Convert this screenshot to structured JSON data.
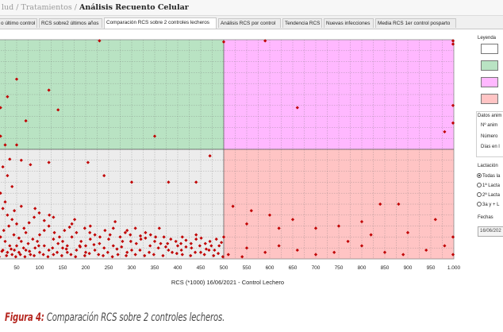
{
  "titlebar": {
    "crumb_prefix": "lud / Tratamientos",
    "separator": "/",
    "current": "Análisis Recuento Celular"
  },
  "tabs": [
    {
      "label": "o último control",
      "active": false
    },
    {
      "label": "RCS sobre2 últimos años",
      "active": false
    },
    {
      "label": "Comparación RCS sobre 2 controles lecheros",
      "active": true
    },
    {
      "label": "Análisis RCS por control",
      "active": false
    },
    {
      "label": "Tendencia RCS",
      "active": false
    },
    {
      "label": "Nuevas infecciones",
      "active": false
    },
    {
      "label": "Media RCS 1er control posparto",
      "active": false
    }
  ],
  "sidebar": {
    "legend_title": "Leyenda",
    "legend_colors": [
      "#ffffff",
      "#b9e3c3",
      "#ffb8ff",
      "#ffc4c4"
    ],
    "animal_group_title": "Datos anim",
    "animal_fields": [
      "Nº anim",
      "Número",
      "Días en l"
    ],
    "lactation_title": "Lactación",
    "lactation_options": [
      {
        "label": "Todas la",
        "selected": true
      },
      {
        "label": "1ª Lacta",
        "selected": false
      },
      {
        "label": "2ª Lacta",
        "selected": false
      },
      {
        "label": "3a y + L",
        "selected": false
      }
    ],
    "dates_title": "Fechas",
    "date_value": "16/06/202"
  },
  "chart_data": {
    "type": "scatter",
    "xlabel": "RCS (*1000) 16/06/2021 - Control Lechero",
    "ylabel": "",
    "x_ticks": [
      "50",
      "100",
      "150",
      "200",
      "250",
      "300",
      "350",
      "400",
      "450",
      "500",
      "550",
      "600",
      "650",
      "700",
      "750",
      "800",
      "850",
      "900",
      "950",
      "1.000"
    ],
    "x_tick_values": [
      50,
      100,
      150,
      200,
      250,
      300,
      350,
      400,
      450,
      500,
      550,
      600,
      650,
      700,
      750,
      800,
      850,
      900,
      950,
      1000
    ],
    "xlim": [
      0,
      1000
    ],
    "ylim": [
      0,
      1000
    ],
    "threshold_x": 500,
    "threshold_y": 500,
    "grid": true,
    "quadrants": [
      {
        "region": "top-left",
        "color": "#b9e3c3"
      },
      {
        "region": "top-right",
        "color": "#ffb8ff"
      },
      {
        "region": "bottom-left",
        "color": "#ececec"
      },
      {
        "region": "bottom-right",
        "color": "#ffc4c4"
      }
    ],
    "marker_color": "#c00000",
    "points": [
      [
        0,
        990
      ],
      [
        230,
        995
      ],
      [
        500,
        990
      ],
      [
        590,
        995
      ],
      [
        1000,
        995
      ],
      [
        10,
        800
      ],
      [
        50,
        820
      ],
      [
        120,
        770
      ],
      [
        5,
        700
      ],
      [
        15,
        690
      ],
      [
        30,
        740
      ],
      [
        70,
        630
      ],
      [
        140,
        680
      ],
      [
        350,
        560
      ],
      [
        660,
        690
      ],
      [
        1000,
        980
      ],
      [
        1000,
        700
      ],
      [
        1000,
        620
      ],
      [
        980,
        580
      ],
      [
        5,
        600
      ],
      [
        15,
        560
      ],
      [
        50,
        520
      ],
      [
        25,
        520
      ],
      [
        35,
        455
      ],
      [
        60,
        450
      ],
      [
        80,
        430
      ],
      [
        120,
        440
      ],
      [
        205,
        440
      ],
      [
        240,
        380
      ],
      [
        300,
        350
      ],
      [
        380,
        350
      ],
      [
        440,
        350
      ],
      [
        470,
        470
      ],
      [
        20,
        420
      ],
      [
        30,
        380
      ],
      [
        40,
        330
      ],
      [
        15,
        300
      ],
      [
        5,
        280
      ],
      [
        25,
        260
      ],
      [
        60,
        240
      ],
      [
        45,
        220
      ],
      [
        90,
        230
      ],
      [
        130,
        190
      ],
      [
        170,
        160
      ],
      [
        210,
        150
      ],
      [
        260,
        140
      ],
      [
        290,
        130
      ],
      [
        330,
        120
      ],
      [
        360,
        140
      ],
      [
        410,
        100
      ],
      [
        440,
        90
      ],
      [
        470,
        80
      ],
      [
        490,
        60
      ],
      [
        480,
        40
      ],
      [
        450,
        30
      ],
      [
        410,
        20
      ],
      [
        380,
        40
      ],
      [
        340,
        60
      ],
      [
        300,
        40
      ],
      [
        270,
        20
      ],
      [
        240,
        50
      ],
      [
        200,
        30
      ],
      [
        160,
        60
      ],
      [
        120,
        40
      ],
      [
        95,
        80
      ],
      [
        70,
        120
      ],
      [
        50,
        160
      ],
      [
        40,
        180
      ],
      [
        30,
        200
      ],
      [
        20,
        230
      ],
      [
        10,
        150
      ],
      [
        5,
        120
      ],
      [
        15,
        100
      ],
      [
        25,
        80
      ],
      [
        35,
        60
      ],
      [
        45,
        40
      ],
      [
        55,
        30
      ],
      [
        65,
        50
      ],
      [
        75,
        70
      ],
      [
        85,
        90
      ],
      [
        100,
        110
      ],
      [
        110,
        130
      ],
      [
        120,
        150
      ],
      [
        130,
        90
      ],
      [
        140,
        70
      ],
      [
        150,
        50
      ],
      [
        160,
        30
      ],
      [
        170,
        100
      ],
      [
        180,
        120
      ],
      [
        190,
        80
      ],
      [
        200,
        60
      ],
      [
        210,
        90
      ],
      [
        220,
        110
      ],
      [
        230,
        70
      ],
      [
        250,
        90
      ],
      [
        260,
        60
      ],
      [
        280,
        80
      ],
      [
        310,
        70
      ],
      [
        320,
        90
      ],
      [
        350,
        80
      ],
      [
        370,
        100
      ],
      [
        400,
        60
      ],
      [
        430,
        50
      ],
      [
        460,
        70
      ],
      [
        10,
        50
      ],
      [
        20,
        40
      ],
      [
        30,
        30
      ],
      [
        40,
        20
      ],
      [
        50,
        60
      ],
      [
        60,
        80
      ],
      [
        70,
        40
      ],
      [
        80,
        20
      ],
      [
        90,
        50
      ],
      [
        100,
        30
      ],
      [
        110,
        60
      ],
      [
        130,
        20
      ],
      [
        150,
        80
      ],
      [
        180,
        40
      ],
      [
        220,
        40
      ],
      [
        290,
        30
      ],
      [
        500,
        100
      ],
      [
        510,
        20
      ],
      [
        540,
        10
      ],
      [
        550,
        50
      ],
      [
        590,
        30
      ],
      [
        620,
        60
      ],
      [
        660,
        40
      ],
      [
        700,
        20
      ],
      [
        740,
        30
      ],
      [
        770,
        80
      ],
      [
        800,
        60
      ],
      [
        850,
        30
      ],
      [
        890,
        20
      ],
      [
        940,
        40
      ],
      [
        980,
        60
      ],
      [
        1000,
        20
      ],
      [
        700,
        140
      ],
      [
        750,
        150
      ],
      [
        800,
        170
      ],
      [
        840,
        250
      ],
      [
        880,
        250
      ],
      [
        600,
        200
      ],
      [
        650,
        180
      ],
      [
        550,
        160
      ],
      [
        520,
        240
      ],
      [
        960,
        180
      ],
      [
        1000,
        100
      ],
      [
        900,
        120
      ],
      [
        820,
        110
      ],
      [
        620,
        140
      ],
      [
        560,
        220
      ],
      [
        5,
        20
      ],
      [
        12,
        10
      ],
      [
        18,
        35
      ],
      [
        28,
        15
      ],
      [
        38,
        45
      ],
      [
        48,
        10
      ],
      [
        58,
        20
      ],
      [
        68,
        10
      ],
      [
        78,
        35
      ],
      [
        88,
        15
      ],
      [
        98,
        60
      ],
      [
        108,
        20
      ],
      [
        118,
        10
      ],
      [
        128,
        50
      ],
      [
        138,
        30
      ],
      [
        148,
        15
      ],
      [
        158,
        45
      ],
      [
        168,
        20
      ],
      [
        178,
        10
      ],
      [
        188,
        55
      ],
      [
        198,
        15
      ],
      [
        208,
        25
      ],
      [
        218,
        65
      ],
      [
        228,
        20
      ],
      [
        238,
        15
      ],
      [
        248,
        30
      ],
      [
        258,
        10
      ],
      [
        268,
        45
      ],
      [
        278,
        55
      ],
      [
        288,
        15
      ],
      [
        298,
        80
      ],
      [
        308,
        20
      ],
      [
        318,
        40
      ],
      [
        328,
        15
      ],
      [
        338,
        30
      ],
      [
        348,
        20
      ],
      [
        358,
        50
      ],
      [
        368,
        15
      ],
      [
        378,
        70
      ],
      [
        388,
        30
      ],
      [
        398,
        25
      ],
      [
        408,
        40
      ],
      [
        418,
        55
      ],
      [
        428,
        15
      ],
      [
        438,
        30
      ],
      [
        448,
        60
      ],
      [
        458,
        20
      ],
      [
        468,
        40
      ],
      [
        478,
        15
      ],
      [
        488,
        25
      ],
      [
        498,
        10
      ],
      [
        22,
        130
      ],
      [
        33,
        150
      ],
      [
        44,
        110
      ],
      [
        55,
        95
      ],
      [
        66,
        140
      ],
      [
        77,
        165
      ],
      [
        88,
        190
      ],
      [
        99,
        210
      ],
      [
        110,
        175
      ],
      [
        121,
        200
      ],
      [
        132,
        120
      ],
      [
        143,
        100
      ],
      [
        154,
        130
      ],
      [
        165,
        145
      ],
      [
        176,
        180
      ],
      [
        187,
        60
      ],
      [
        198,
        140
      ],
      [
        209,
        120
      ],
      [
        231,
        100
      ],
      [
        242,
        130
      ],
      [
        253,
        110
      ],
      [
        264,
        170
      ],
      [
        275,
        100
      ],
      [
        286,
        120
      ],
      [
        297,
        110
      ],
      [
        308,
        140
      ],
      [
        319,
        105
      ],
      [
        330,
        95
      ],
      [
        341,
        110
      ],
      [
        352,
        100
      ],
      [
        363,
        70
      ],
      [
        374,
        55
      ],
      [
        385,
        90
      ],
      [
        396,
        80
      ],
      [
        407,
        70
      ],
      [
        418,
        85
      ],
      [
        429,
        70
      ],
      [
        440,
        110
      ],
      [
        451,
        95
      ],
      [
        462,
        45
      ],
      [
        473,
        60
      ],
      [
        484,
        90
      ],
      [
        495,
        75
      ]
    ]
  },
  "caption": {
    "label": "Figura 4:",
    "text": " Comparación RCS sobre 2 controles lecheros."
  }
}
